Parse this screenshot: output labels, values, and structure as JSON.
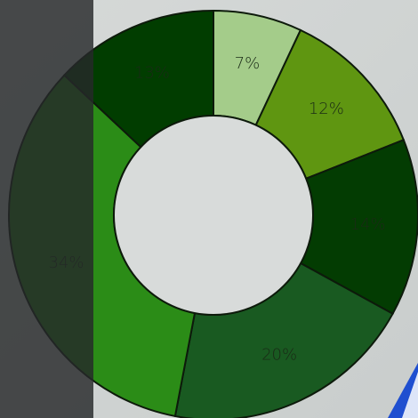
{
  "chart_data": {
    "type": "pie",
    "donut": true,
    "title": "",
    "legend": "none",
    "categories": [
      "7%",
      "12%",
      "14%",
      "20%",
      "34%",
      "13%"
    ],
    "values": [
      7,
      12,
      14,
      20,
      34,
      13
    ],
    "labels": [
      "7%",
      "12%",
      "14%",
      "20%",
      "34%",
      "13%"
    ],
    "colors": [
      "#a4cc8a",
      "#5f9611",
      "#033c02",
      "#195a21",
      "#2b8c17",
      "#013d00"
    ],
    "start_angle_deg": 0,
    "direction": "clockwise"
  },
  "page": {
    "background": "#d3d6d5",
    "overlay_color": "#26282a",
    "corner_accent": "#1f4fd0"
  }
}
